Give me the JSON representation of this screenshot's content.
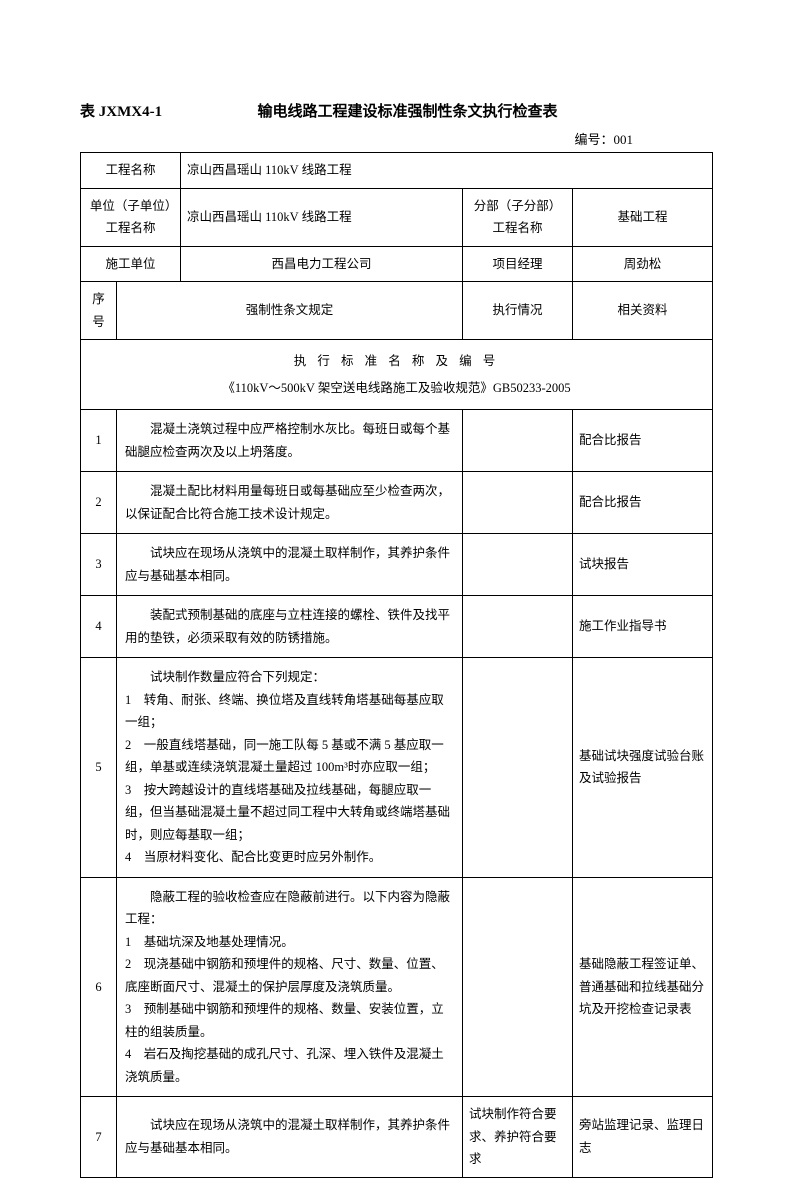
{
  "header": {
    "tableId": "表 JXMX4-1",
    "title": "输电线路工程建设标准强制性条文执行检查表",
    "docNumber": "编号：001"
  },
  "info": {
    "projectNameLabel": "工程名称",
    "projectName": "凉山西昌瑶山 110kV 线路工程",
    "unitLabel": "单位（子单位）工程名称",
    "unitName": "凉山西昌瑶山 110kV 线路工程",
    "subLabel": "分部（子分部）工程名称",
    "subName": "基础工程",
    "constructionUnitLabel": "施工单位",
    "constructionUnit": "西昌电力工程公司",
    "pmLabel": "项目经理",
    "pm": "周劲松"
  },
  "columns": {
    "seq": "序号",
    "provision": "强制性条文规定",
    "execution": "执行情况",
    "material": "相关资料"
  },
  "standard": {
    "headerLine": "执 行 标 准 名 称 及 编 号",
    "name": "《110kV～500kV 架空送电线路施工及验收规范》GB50233-2005"
  },
  "rows": [
    {
      "seq": "1",
      "provision": "　　混凝土浇筑过程中应严格控制水灰比。每班日或每个基础腿应检查两次及以上坍落度。",
      "execution": "",
      "material": "配合比报告"
    },
    {
      "seq": "2",
      "provision": "　　混凝土配比材料用量每班日或每基础应至少检查两次，以保证配合比符合施工技术设计规定。",
      "execution": "",
      "material": "配合比报告"
    },
    {
      "seq": "3",
      "provision": "　　试块应在现场从浇筑中的混凝土取样制作，其养护条件应与基础基本相同。",
      "execution": "",
      "material": "试块报告"
    },
    {
      "seq": "4",
      "provision": "　　装配式预制基础的底座与立柱连接的螺栓、铁件及找平用的垫铁，必须采取有效的防锈措施。",
      "execution": "",
      "material": "施工作业指导书"
    },
    {
      "seq": "5",
      "provision": "　　试块制作数量应符合下列规定：\n1　转角、耐张、终端、换位塔及直线转角塔基础每基应取一组；\n2　一般直线塔基础，同一施工队每 5 基或不满 5 基应取一组，单基或连续浇筑混凝土量超过 100m³时亦应取一组；\n3　按大跨越设计的直线塔基础及拉线基础，每腿应取一组，但当基础混凝土量不超过同工程中大转角或终端塔基础时，则应每基取一组；\n4　当原材料变化、配合比变更时应另外制作。",
      "execution": "",
      "material": "基础试块强度试验台账及试验报告"
    },
    {
      "seq": "6",
      "provision": "　　隐蔽工程的验收检查应在隐蔽前进行。以下内容为隐蔽工程：\n1　基础坑深及地基处理情况。\n2　现浇基础中钢筋和预埋件的规格、尺寸、数量、位置、底座断面尺寸、混凝土的保护层厚度及浇筑质量。\n3　预制基础中钢筋和预埋件的规格、数量、安装位置，立柱的组装质量。\n4　岩石及掏挖基础的成孔尺寸、孔深、埋入铁件及混凝土浇筑质量。",
      "execution": "",
      "material": "基础隐蔽工程签证单、普通基础和拉线基础分坑及开挖检查记录表"
    },
    {
      "seq": "7",
      "provision": "　　试块应在现场从浇筑中的混凝土取样制作，其养护条件应与基础基本相同。",
      "execution": "试块制作符合要求、养护符合要求",
      "material": "旁站监理记录、监理日志"
    }
  ]
}
